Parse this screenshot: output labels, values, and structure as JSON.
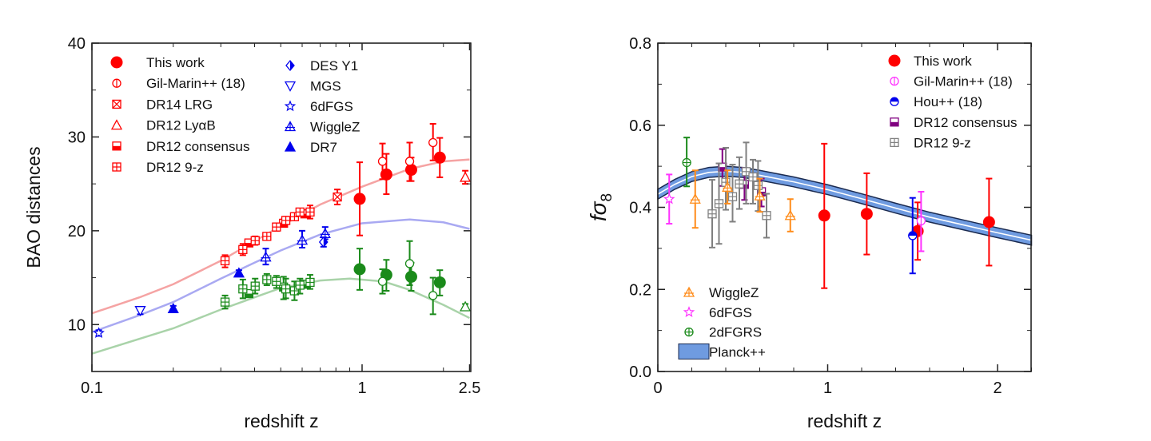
{
  "chart_data": [
    {
      "type": "scatter",
      "xlabel": "redshift z",
      "ylabel": "BAO distances",
      "xscale": "log",
      "xlim": [
        0.1,
        2.5
      ],
      "ylim": [
        5,
        40
      ],
      "xticks": [
        {
          "v": 0.1,
          "label": "0.1"
        },
        {
          "v": 1,
          "label": "1"
        },
        {
          "v": 2.5,
          "label": "2.5"
        }
      ],
      "yticks": [
        {
          "v": 10,
          "label": "10"
        },
        {
          "v": 20,
          "label": "20"
        },
        {
          "v": 30,
          "label": "30"
        },
        {
          "v": 40,
          "label": "40"
        }
      ],
      "grid": false,
      "legend_placement": "top-left",
      "legend": [
        {
          "name": "This work",
          "marker": "filled-circle",
          "color": "#ff0000"
        },
        {
          "name": "Gil-Marin++ (18)",
          "marker": "open-circle-bar",
          "color": "#ff0000"
        },
        {
          "name": "DR14 LRG",
          "marker": "box-x",
          "color": "#ff0000"
        },
        {
          "name": "DR12 LyαB",
          "marker": "open-triangle",
          "color": "#ff0000"
        },
        {
          "name": "DR12 consensus",
          "marker": "half-square",
          "color": "#ff0000"
        },
        {
          "name": "DR12 9-z",
          "marker": "box-plus",
          "color": "#ff0000"
        },
        {
          "name": "DES Y1",
          "marker": "half-diamond",
          "color": "#0000ee"
        },
        {
          "name": "MGS",
          "marker": "open-triangle-down",
          "color": "#0000ee"
        },
        {
          "name": "6dFGS",
          "marker": "star",
          "color": "#0000ee"
        },
        {
          "name": "WiggleZ",
          "marker": "triangle-plus",
          "color": "#0000ee"
        },
        {
          "name": "DR7",
          "marker": "filled-triangle",
          "color": "#0000ee"
        }
      ],
      "lines": [
        {
          "color": "#f5a3a3",
          "points": [
            [
              0.1,
              11.2
            ],
            [
              0.15,
              12.9
            ],
            [
              0.2,
              14.3
            ],
            [
              0.3,
              16.8
            ],
            [
              0.4,
              18.9
            ],
            [
              0.5,
              20.5
            ],
            [
              0.7,
              22.8
            ],
            [
              1,
              24.7
            ],
            [
              1.5,
              26.6
            ],
            [
              2,
              27.4
            ],
            [
              2.5,
              27.6
            ]
          ]
        },
        {
          "color": "#a9a9f2",
          "points": [
            [
              0.1,
              9.2
            ],
            [
              0.15,
              11.0
            ],
            [
              0.2,
              12.4
            ],
            [
              0.3,
              14.9
            ],
            [
              0.4,
              16.6
            ],
            [
              0.5,
              17.9
            ],
            [
              0.7,
              19.6
            ],
            [
              1,
              20.8
            ],
            [
              1.5,
              21.2
            ],
            [
              2,
              20.9
            ],
            [
              2.5,
              20.2
            ]
          ]
        },
        {
          "color": "#a9d3a9",
          "points": [
            [
              0.1,
              6.9
            ],
            [
              0.2,
              9.6
            ],
            [
              0.3,
              11.6
            ],
            [
              0.4,
              12.9
            ],
            [
              0.5,
              13.9
            ],
            [
              0.7,
              14.7
            ],
            [
              0.9,
              14.9
            ],
            [
              1.2,
              14.6
            ],
            [
              1.5,
              13.7
            ],
            [
              2,
              12.1
            ],
            [
              2.5,
              10.7
            ]
          ]
        }
      ],
      "series": [
        {
          "name": "This work",
          "marker": "filled-circle",
          "color": "#ff0000",
          "points": [
            [
              0.98,
              23.4,
              19.5,
              27.3
            ],
            [
              1.23,
              26.0,
              23.9,
              28.2
            ],
            [
              1.52,
              26.5,
              25.3,
              27.8
            ],
            [
              1.94,
              27.8,
              25.7,
              29.9
            ]
          ]
        },
        {
          "name": "This work",
          "marker": "filled-circle",
          "color": "#1a8a1a",
          "points": [
            [
              0.98,
              15.9,
              13.7,
              18.1
            ],
            [
              1.23,
              15.3,
              13.6,
              16.9
            ],
            [
              1.52,
              15.1,
              13.6,
              16.6
            ],
            [
              1.94,
              14.5,
              13.1,
              15.8
            ]
          ]
        },
        {
          "name": "Gil-Marin++ (18)",
          "marker": "open-circle",
          "color": "#ff0000",
          "points": [
            [
              1.19,
              27.4,
              25.5,
              29.3
            ],
            [
              1.5,
              27.4,
              25.3,
              29.4
            ],
            [
              1.83,
              29.4,
              27.5,
              31.4
            ]
          ]
        },
        {
          "name": "Gil-Marin++ (18)",
          "marker": "open-circle",
          "color": "#1a8a1a",
          "points": [
            [
              1.19,
              14.6,
              13.3,
              15.9
            ],
            [
              1.5,
              16.5,
              14.2,
              18.9
            ],
            [
              1.83,
              13.1,
              11.1,
              15.0
            ]
          ]
        },
        {
          "name": "DR14 LRG",
          "marker": "box-x",
          "color": "#ff0000",
          "points": [
            [
              0.81,
              23.6,
              22.8,
              24.4
            ]
          ]
        },
        {
          "name": "DR12 LyαB",
          "marker": "open-triangle",
          "color": "#ff0000",
          "points": [
            [
              2.41,
              25.7,
              25.0,
              26.4
            ]
          ]
        },
        {
          "name": "DR12 LyαB",
          "marker": "open-triangle",
          "color": "#1a8a1a",
          "points": [
            [
              2.41,
              11.9,
              11.6,
              12.2
            ]
          ]
        },
        {
          "name": "DR12 consensus",
          "marker": "half-square",
          "color": "#ff0000",
          "points": [
            [
              0.381,
              18.7,
              18.5,
              18.9
            ],
            [
              0.512,
              20.8,
              20.5,
              21.2
            ],
            [
              0.614,
              21.8,
              21.5,
              22.1
            ]
          ]
        },
        {
          "name": "DR12 consensus",
          "marker": "half-square",
          "color": "#1a8a1a",
          "points": [
            [
              0.381,
              13.3,
              13.1,
              13.5
            ],
            [
              0.512,
              14.0,
              12.7,
              15.1
            ],
            [
              0.614,
              14.3,
              14.0,
              14.6
            ]
          ]
        },
        {
          "name": "DR12 9-z",
          "marker": "box-plus",
          "color": "#ff0000",
          "points": [
            [
              0.311,
              16.8,
              16.1,
              17.4
            ],
            [
              0.362,
              18.0,
              17.4,
              18.6
            ],
            [
              0.402,
              18.95,
              18.5,
              19.4
            ],
            [
              0.444,
              19.4,
              19.1,
              19.7
            ],
            [
              0.482,
              20.4,
              20.0,
              20.8
            ],
            [
              0.522,
              21.1,
              20.7,
              21.5
            ],
            [
              0.562,
              21.5,
              21.1,
              21.9
            ],
            [
              0.589,
              22.0,
              21.7,
              22.3
            ],
            [
              0.642,
              22.0,
              21.3,
              22.7
            ]
          ]
        },
        {
          "name": "DR12 9-z",
          "marker": "box-plus",
          "color": "#1a8a1a",
          "points": [
            [
              0.311,
              12.4,
              11.7,
              13.1
            ],
            [
              0.362,
              13.8,
              12.8,
              14.8
            ],
            [
              0.402,
              14.1,
              13.3,
              14.9
            ],
            [
              0.444,
              14.8,
              14.2,
              15.4
            ],
            [
              0.482,
              14.6,
              13.9,
              15.2
            ],
            [
              0.522,
              13.8,
              12.8,
              14.9
            ],
            [
              0.562,
              13.6,
              12.6,
              14.6
            ],
            [
              0.589,
              14.2,
              13.3,
              14.9
            ],
            [
              0.642,
              14.5,
              13.8,
              15.3
            ]
          ]
        },
        {
          "name": "6dFGS",
          "marker": "star",
          "color": "#0000ee",
          "points": [
            [
              0.106,
              9.1,
              8.8,
              9.4
            ]
          ]
        },
        {
          "name": "MGS",
          "marker": "open-triangle-down",
          "color": "#0000ee",
          "points": [
            [
              0.151,
              11.5,
              11.1,
              11.8
            ]
          ]
        },
        {
          "name": "DR7",
          "marker": "filled-triangle",
          "color": "#0000ee",
          "points": [
            [
              0.2,
              11.7,
              11.4,
              12.0
            ],
            [
              0.35,
              15.5,
              15.2,
              15.8
            ]
          ]
        },
        {
          "name": "WiggleZ",
          "marker": "triangle-plus",
          "color": "#0000ee",
          "points": [
            [
              0.44,
              17.2,
              16.4,
              18.1
            ],
            [
              0.6,
              19.0,
              18.2,
              20.0
            ],
            [
              0.73,
              19.7,
              19.1,
              20.4
            ]
          ]
        },
        {
          "name": "DES Y1",
          "marker": "half-diamond",
          "color": "#0000ee",
          "points": [
            [
              0.72,
              18.8,
              18.3,
              19.3
            ]
          ]
        }
      ]
    },
    {
      "type": "scatter",
      "xlabel": "redshift z",
      "ylabel": "fσ",
      "ylabel_subscript": "8",
      "xlim": [
        0,
        2.2
      ],
      "ylim": [
        0,
        0.8
      ],
      "xticks": [
        {
          "v": 0,
          "label": "0"
        },
        {
          "v": 1,
          "label": "1"
        },
        {
          "v": 2,
          "label": "2"
        }
      ],
      "yticks": [
        {
          "v": 0,
          "label": "0.0"
        },
        {
          "v": 0.2,
          "label": "0.2"
        },
        {
          "v": 0.4,
          "label": "0.4"
        },
        {
          "v": 0.6,
          "label": "0.6"
        },
        {
          "v": 0.8,
          "label": "0.8"
        }
      ],
      "grid": false,
      "legend_placement": "top-right and bottom-left",
      "legend": [
        {
          "name": "This work",
          "marker": "filled-circle",
          "color": "#ff0000",
          "group": "top"
        },
        {
          "name": "Gil-Marin++ (18)",
          "marker": "open-circle-bar",
          "color": "#ff33ff",
          "group": "top"
        },
        {
          "name": "Hou++ (18)",
          "marker": "half-circle",
          "color": "#0000ee",
          "group": "top"
        },
        {
          "name": "DR12 consensus",
          "marker": "half-square",
          "color": "#800080",
          "group": "top"
        },
        {
          "name": "DR12 9-z",
          "marker": "box-plus",
          "color": "#808080",
          "group": "top"
        },
        {
          "name": "WiggleZ",
          "marker": "triangle-plus",
          "color": "#ff8c1a",
          "group": "bottom"
        },
        {
          "name": "6dFGS",
          "marker": "star",
          "color": "#ff33ff",
          "group": "bottom"
        },
        {
          "name": "2dFGRS",
          "marker": "circle-plus",
          "color": "#1a8a1a",
          "group": "bottom"
        },
        {
          "name": "Planck++",
          "marker": "band",
          "color": "#6f9be0",
          "group": "bottom"
        }
      ],
      "band": {
        "name": "Planck++",
        "color": "#6f9be0",
        "edge_color": "#1a2a50",
        "halfwidth": 0.012,
        "points": [
          [
            0,
            0.432
          ],
          [
            0.1,
            0.456
          ],
          [
            0.2,
            0.475
          ],
          [
            0.3,
            0.485
          ],
          [
            0.4,
            0.488
          ],
          [
            0.5,
            0.485
          ],
          [
            0.6,
            0.478
          ],
          [
            0.8,
            0.462
          ],
          [
            1,
            0.443
          ],
          [
            1.2,
            0.421
          ],
          [
            1.4,
            0.398
          ],
          [
            1.6,
            0.376
          ],
          [
            1.8,
            0.357
          ],
          [
            2,
            0.338
          ],
          [
            2.2,
            0.32
          ]
        ]
      },
      "series": [
        {
          "name": "This work",
          "marker": "filled-circle",
          "color": "#ff0000",
          "points": [
            [
              0.98,
              0.38,
              0.203,
              0.555
            ],
            [
              1.23,
              0.384,
              0.285,
              0.483
            ],
            [
              1.53,
              0.342,
              0.272,
              0.412
            ],
            [
              1.95,
              0.364,
              0.258,
              0.47
            ]
          ]
        },
        {
          "name": "Gil-Marin++ (18)",
          "marker": "open-circle-bar",
          "color": "#ff33ff",
          "points": [
            [
              1.55,
              0.367,
              0.293,
              0.438
            ]
          ]
        },
        {
          "name": "Hou++ (18)",
          "marker": "half-circle",
          "color": "#0000ee",
          "points": [
            [
              1.5,
              0.331,
              0.239,
              0.423
            ]
          ]
        },
        {
          "name": "DR12 consensus",
          "marker": "half-square",
          "color": "#800080",
          "points": [
            [
              0.38,
              0.498,
              0.452,
              0.542
            ],
            [
              0.51,
              0.456,
              0.418,
              0.496
            ],
            [
              0.61,
              0.438,
              0.402,
              0.47
            ]
          ]
        },
        {
          "name": "DR12 9-z",
          "marker": "box-plus",
          "color": "#808080",
          "points": [
            [
              0.32,
              0.384,
              0.302,
              0.467
            ],
            [
              0.36,
              0.409,
              0.311,
              0.507
            ],
            [
              0.4,
              0.461,
              0.394,
              0.545
            ],
            [
              0.44,
              0.426,
              0.365,
              0.504
            ],
            [
              0.48,
              0.457,
              0.396,
              0.522
            ],
            [
              0.52,
              0.487,
              0.409,
              0.558
            ],
            [
              0.56,
              0.474,
              0.409,
              0.516
            ],
            [
              0.59,
              0.453,
              0.391,
              0.513
            ],
            [
              0.64,
              0.38,
              0.326,
              0.433
            ]
          ]
        },
        {
          "name": "WiggleZ",
          "marker": "triangle-plus",
          "color": "#ff8c1a",
          "points": [
            [
              0.22,
              0.42,
              0.35,
              0.49
            ],
            [
              0.41,
              0.449,
              0.409,
              0.49
            ],
            [
              0.6,
              0.428,
              0.389,
              0.47
            ],
            [
              0.78,
              0.38,
              0.341,
              0.42
            ]
          ]
        },
        {
          "name": "6dFGS",
          "marker": "star",
          "color": "#ff33ff",
          "points": [
            [
              0.067,
              0.42,
              0.36,
              0.48
            ]
          ]
        },
        {
          "name": "2dFGRS",
          "marker": "circle-plus",
          "color": "#1a8a1a",
          "points": [
            [
              0.17,
              0.509,
              0.451,
              0.57
            ]
          ]
        }
      ]
    }
  ]
}
